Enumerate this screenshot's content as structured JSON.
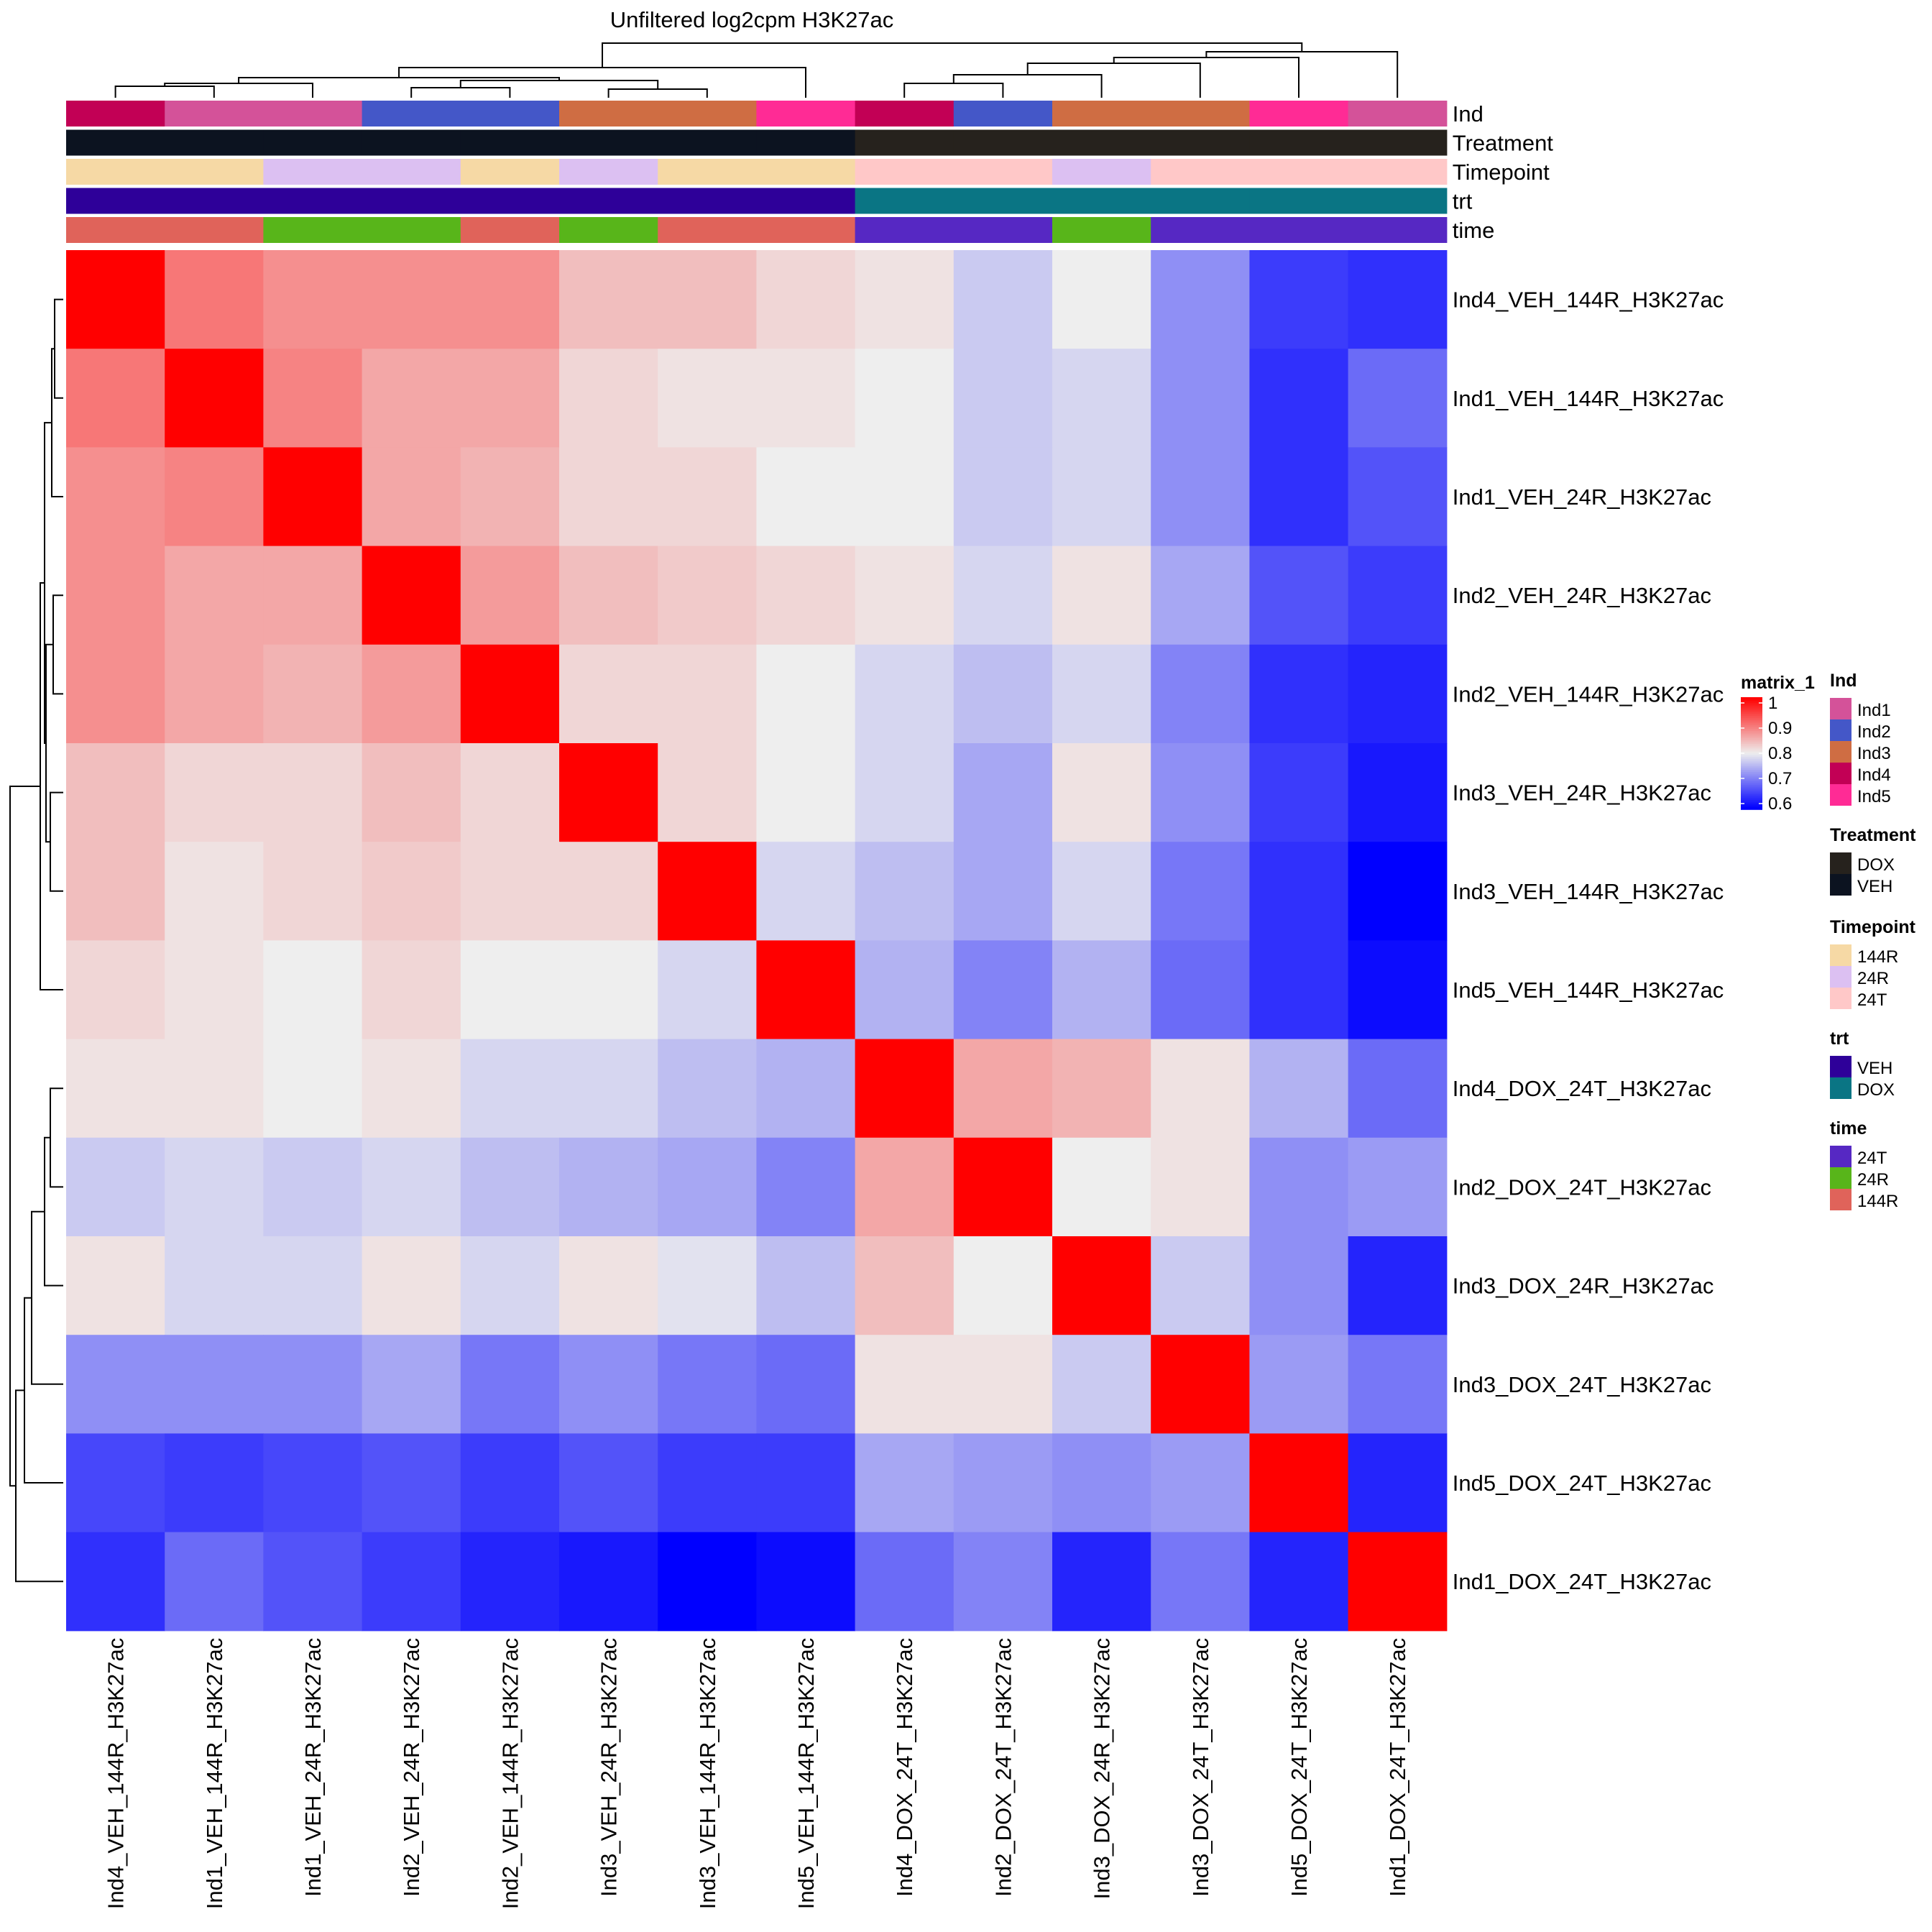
{
  "chart_data": {
    "type": "heatmap",
    "title": "Unfiltered log2cpm H3K27ac",
    "samples": [
      "Ind4_VEH_144R_H3K27ac",
      "Ind1_VEH_144R_H3K27ac",
      "Ind1_VEH_24R_H3K27ac",
      "Ind2_VEH_24R_H3K27ac",
      "Ind2_VEH_144R_H3K27ac",
      "Ind3_VEH_24R_H3K27ac",
      "Ind3_VEH_144R_H3K27ac",
      "Ind5_VEH_144R_H3K27ac",
      "Ind4_DOX_24T_H3K27ac",
      "Ind2_DOX_24T_H3K27ac",
      "Ind3_DOX_24R_H3K27ac",
      "Ind3_DOX_24T_H3K27ac",
      "Ind5_DOX_24T_H3K27ac",
      "Ind1_DOX_24T_H3K27ac"
    ],
    "matrix": [
      [
        1.0,
        0.9,
        0.88,
        0.88,
        0.88,
        0.84,
        0.84,
        0.82,
        0.81,
        0.77,
        0.8,
        0.72,
        0.65,
        0.64
      ],
      [
        0.9,
        1.0,
        0.89,
        0.86,
        0.86,
        0.82,
        0.81,
        0.81,
        0.8,
        0.77,
        0.78,
        0.72,
        0.64,
        0.69
      ],
      [
        0.88,
        0.89,
        1.0,
        0.86,
        0.85,
        0.82,
        0.82,
        0.8,
        0.8,
        0.77,
        0.78,
        0.72,
        0.64,
        0.67
      ],
      [
        0.88,
        0.86,
        0.86,
        1.0,
        0.87,
        0.84,
        0.83,
        0.82,
        0.81,
        0.78,
        0.81,
        0.74,
        0.67,
        0.65
      ],
      [
        0.88,
        0.86,
        0.85,
        0.87,
        1.0,
        0.82,
        0.82,
        0.8,
        0.78,
        0.76,
        0.78,
        0.71,
        0.64,
        0.63
      ],
      [
        0.84,
        0.82,
        0.82,
        0.84,
        0.82,
        1.0,
        0.82,
        0.8,
        0.78,
        0.74,
        0.81,
        0.72,
        0.65,
        0.62
      ],
      [
        0.84,
        0.81,
        0.82,
        0.83,
        0.82,
        0.82,
        1.0,
        0.78,
        0.76,
        0.74,
        0.78,
        0.7,
        0.64,
        0.6
      ],
      [
        0.82,
        0.81,
        0.8,
        0.82,
        0.8,
        0.8,
        0.78,
        1.0,
        0.75,
        0.71,
        0.75,
        0.69,
        0.64,
        0.61
      ],
      [
        0.81,
        0.81,
        0.8,
        0.81,
        0.78,
        0.78,
        0.76,
        0.75,
        1.0,
        0.86,
        0.85,
        0.81,
        0.75,
        0.69
      ],
      [
        0.77,
        0.78,
        0.77,
        0.78,
        0.76,
        0.75,
        0.74,
        0.71,
        0.86,
        1.0,
        0.8,
        0.81,
        0.72,
        0.73
      ],
      [
        0.81,
        0.78,
        0.78,
        0.81,
        0.78,
        0.81,
        0.79,
        0.76,
        0.84,
        0.8,
        1.0,
        0.77,
        0.72,
        0.63
      ],
      [
        0.72,
        0.72,
        0.72,
        0.74,
        0.7,
        0.72,
        0.7,
        0.69,
        0.81,
        0.81,
        0.77,
        1.0,
        0.73,
        0.7
      ],
      [
        0.66,
        0.65,
        0.66,
        0.67,
        0.65,
        0.67,
        0.65,
        0.65,
        0.74,
        0.73,
        0.72,
        0.73,
        1.0,
        0.63
      ],
      [
        0.64,
        0.69,
        0.67,
        0.65,
        0.63,
        0.62,
        0.6,
        0.61,
        0.69,
        0.71,
        0.63,
        0.7,
        0.63,
        1.0
      ]
    ],
    "color_scale": {
      "name": "matrix_1",
      "min": 0.6,
      "max": 1.0,
      "stops": [
        {
          "value": 0.6,
          "color": "#0000ff"
        },
        {
          "value": 0.8,
          "color": "#eeeeee"
        },
        {
          "value": 1.0,
          "color": "#ff0000"
        }
      ],
      "ticks": [
        "1",
        "0.9",
        "0.8",
        "0.7",
        "0.6"
      ]
    },
    "annotations": [
      {
        "name": "Ind",
        "values": [
          "Ind4",
          "Ind1",
          "Ind1",
          "Ind2",
          "Ind2",
          "Ind3",
          "Ind3",
          "Ind5",
          "Ind4",
          "Ind2",
          "Ind3",
          "Ind3",
          "Ind5",
          "Ind1"
        ]
      },
      {
        "name": "Treatment",
        "values": [
          "VEH",
          "VEH",
          "VEH",
          "VEH",
          "VEH",
          "VEH",
          "VEH",
          "VEH",
          "DOX",
          "DOX",
          "DOX",
          "DOX",
          "DOX",
          "DOX"
        ]
      },
      {
        "name": "Timepoint",
        "values": [
          "144R",
          "144R",
          "24R",
          "24R",
          "144R",
          "24R",
          "144R",
          "144R",
          "24T",
          "24T",
          "24R",
          "24T",
          "24T",
          "24T"
        ]
      },
      {
        "name": "trt",
        "values": [
          "VEH",
          "VEH",
          "VEH",
          "VEH",
          "VEH",
          "VEH",
          "VEH",
          "VEH",
          "DOX",
          "DOX",
          "DOX",
          "DOX",
          "DOX",
          "DOX"
        ]
      },
      {
        "name": "time",
        "values": [
          "144R",
          "144R",
          "24R",
          "24R",
          "144R",
          "24R",
          "144R",
          "144R",
          "24T",
          "24T",
          "24R",
          "24T",
          "24T",
          "24T"
        ]
      }
    ],
    "legends": [
      {
        "title": "Ind",
        "entries": [
          {
            "label": "Ind1",
            "color": "#d45299"
          },
          {
            "label": "Ind2",
            "color": "#4457c8"
          },
          {
            "label": "Ind3",
            "color": "#cf6d43"
          },
          {
            "label": "Ind4",
            "color": "#c20055"
          },
          {
            "label": "Ind5",
            "color": "#ff2b95"
          }
        ]
      },
      {
        "title": "Treatment",
        "entries": [
          {
            "label": "DOX",
            "color": "#26221d"
          },
          {
            "label": "VEH",
            "color": "#0c1320"
          }
        ]
      },
      {
        "title": "Timepoint",
        "entries": [
          {
            "label": "144R",
            "color": "#f6d9a5"
          },
          {
            "label": "24R",
            "color": "#dcc0f2"
          },
          {
            "label": "24T",
            "color": "#ffc8c8"
          }
        ]
      },
      {
        "title": "trt",
        "entries": [
          {
            "label": "VEH",
            "color": "#2e0099"
          },
          {
            "label": "DOX",
            "color": "#0a7584"
          }
        ]
      },
      {
        "title": "time",
        "entries": [
          {
            "label": "24T",
            "color": "#5628c3"
          },
          {
            "label": "24R",
            "color": "#58b51a"
          },
          {
            "label": "144R",
            "color": "#e0635a"
          }
        ]
      }
    ]
  }
}
